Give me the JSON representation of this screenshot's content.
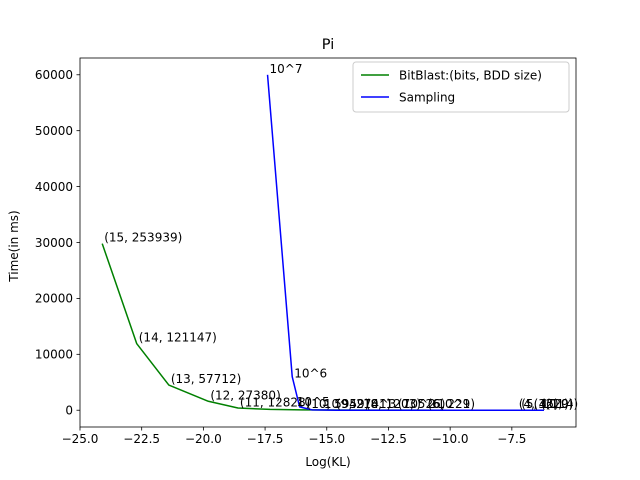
{
  "chart_data": {
    "type": "line",
    "title": "Pi",
    "xlabel": "Log(KL)",
    "ylabel": "Time(in ms)",
    "xlim": [
      -25.0,
      -4.9
    ],
    "ylim": [
      -3000,
      63000
    ],
    "xticks": [
      -25.0,
      -22.5,
      -20.0,
      -17.5,
      -15.0,
      -12.5,
      -10.0,
      -7.5
    ],
    "xtick_labels": [
      "−25.0",
      "−22.5",
      "−20.0",
      "−17.5",
      "−15.0",
      "−12.5",
      "−10.0",
      "−7.5"
    ],
    "yticks": [
      0,
      10000,
      20000,
      30000,
      40000,
      50000,
      60000
    ],
    "ytick_labels": [
      "0",
      "10000",
      "20000",
      "30000",
      "40000",
      "50000",
      "60000"
    ],
    "grid": false,
    "legend_position": "top-right",
    "series": [
      {
        "name": "BitBlast:(bits, BDD size)",
        "color": "#008000",
        "x": [
          -24.1,
          -22.7,
          -21.4,
          -19.8,
          -18.6,
          -17.3,
          -16.0,
          -14.5,
          -13.0,
          -11.5,
          -10.0,
          -8.5,
          -7.3,
          -6.2
        ],
        "y": [
          29800,
          11900,
          4500,
          1600,
          400,
          150,
          60,
          30,
          15,
          8,
          5,
          3,
          2,
          1
        ]
      },
      {
        "name": "Sampling",
        "color": "#0000ff",
        "x": [
          -17.4,
          -16.4,
          -16.1,
          -15.6,
          -14.6,
          -13.1,
          -11.6,
          -10.1,
          -8.6,
          -7.2,
          -6.2
        ],
        "y": [
          60000,
          6000,
          600,
          60,
          6,
          0.6,
          0.06,
          0.006,
          0.0006,
          6e-05,
          6e-06
        ]
      }
    ],
    "annotations": [
      {
        "text": "(15, 253939)",
        "x": -24.1,
        "y": 29800
      },
      {
        "text": "(14, 121147)",
        "x": -22.7,
        "y": 11900
      },
      {
        "text": "(13, 57712)",
        "x": -21.4,
        "y": 4500
      },
      {
        "text": "(12, 27380)",
        "x": -19.8,
        "y": 1600
      },
      {
        "text": "(11, 12828)",
        "x": -18.6,
        "y": 300
      },
      {
        "text": "10^7",
        "x": -17.4,
        "y": 60000
      },
      {
        "text": "10^6",
        "x": -16.4,
        "y": 5500
      },
      {
        "text": "10^5",
        "x": -16.3,
        "y": 400
      },
      {
        "text": "(10, 5959)",
        "x": -15.9,
        "y": 0
      },
      {
        "text": "(9, 2741)",
        "x": -14.7,
        "y": 0
      },
      {
        "text": "(8, 1203)",
        "x": -13.5,
        "y": 0
      },
      {
        "text": "(7, 526)",
        "x": -12.2,
        "y": 0
      },
      {
        "text": "(6, 229)",
        "x": -11.0,
        "y": 0
      },
      {
        "text": "10^4",
        "x": -15.2,
        "y": 0
      },
      {
        "text": "10^3",
        "x": -13.6,
        "y": 0
      },
      {
        "text": "10^2",
        "x": -12.0,
        "y": 0
      },
      {
        "text": "10^1",
        "x": -10.6,
        "y": 0
      },
      {
        "text": "(5, 101)",
        "x": -7.2,
        "y": 0
      },
      {
        "text": "(4, 45)",
        "x": -7.3,
        "y": 0
      },
      {
        "text": "(3, 20)",
        "x": -6.7,
        "y": 0
      },
      {
        "text": "(2, 9)",
        "x": -6.4,
        "y": 0
      },
      {
        "text": "(1, 4)",
        "x": -6.2,
        "y": 0
      }
    ]
  }
}
